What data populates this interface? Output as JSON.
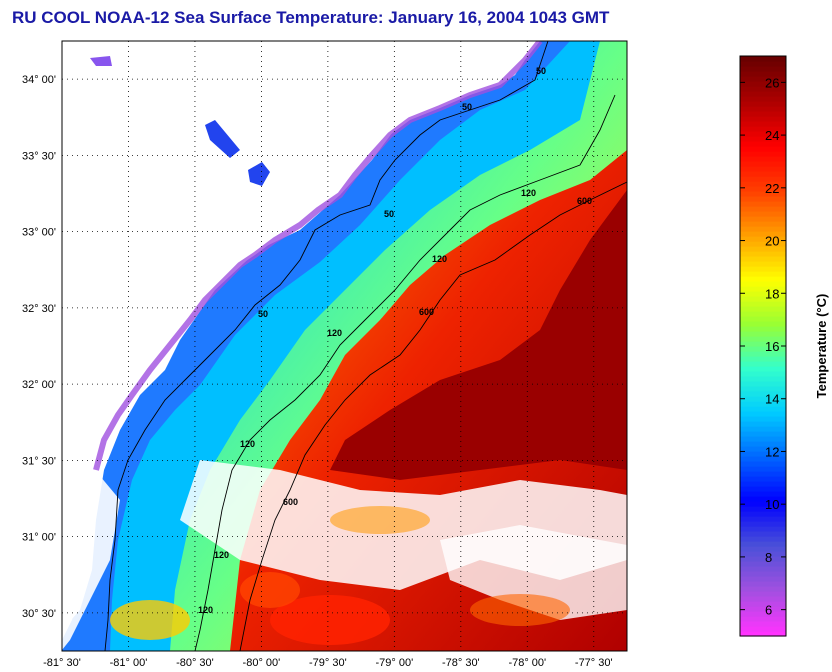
{
  "title": "RU COOL  NOAA-12  Sea Surface Temperature:  January 16, 2004 1043 GMT",
  "map": {
    "lat_labels": [
      "34° 00'",
      "33° 30'",
      "33° 00'",
      "32° 30'",
      "32° 00'",
      "31° 30'",
      "31° 00'",
      "30° 30'"
    ],
    "lat_values": [
      34.0,
      33.5,
      33.0,
      32.5,
      32.0,
      31.5,
      31.0,
      30.5
    ],
    "lon_labels": [
      "-81° 30'",
      "-81° 00'",
      "-80° 30'",
      "-80° 00'",
      "-79° 30'",
      "-79° 00'",
      "-78° 30'",
      "-78° 00'",
      "-77° 30'"
    ],
    "lon_values": [
      -81.5,
      -81.0,
      -80.5,
      -80.0,
      -79.5,
      -79.0,
      -78.5,
      -78.0,
      -77.5
    ],
    "lat_range": [
      30.25,
      34.25
    ],
    "lon_range": [
      -81.5,
      -77.25
    ],
    "grid": "dotted",
    "contour_labels": [
      "50",
      "50",
      "50",
      "50",
      "120",
      "120",
      "120",
      "120",
      "120",
      "120",
      "600",
      "600",
      "600"
    ]
  },
  "colorbar": {
    "label": "Temperature (°C)",
    "range": [
      5,
      27
    ],
    "ticks": [
      6,
      8,
      10,
      12,
      14,
      16,
      18,
      20,
      22,
      24,
      26
    ],
    "colors": [
      "#ff33ff",
      "#a050e0",
      "#4a50d8",
      "#0000ff",
      "#0066ff",
      "#00ccff",
      "#33ffcc",
      "#99ff33",
      "#ffff00",
      "#ffa000",
      "#ff4000",
      "#ff0000",
      "#b00000",
      "#6a0000"
    ]
  }
}
